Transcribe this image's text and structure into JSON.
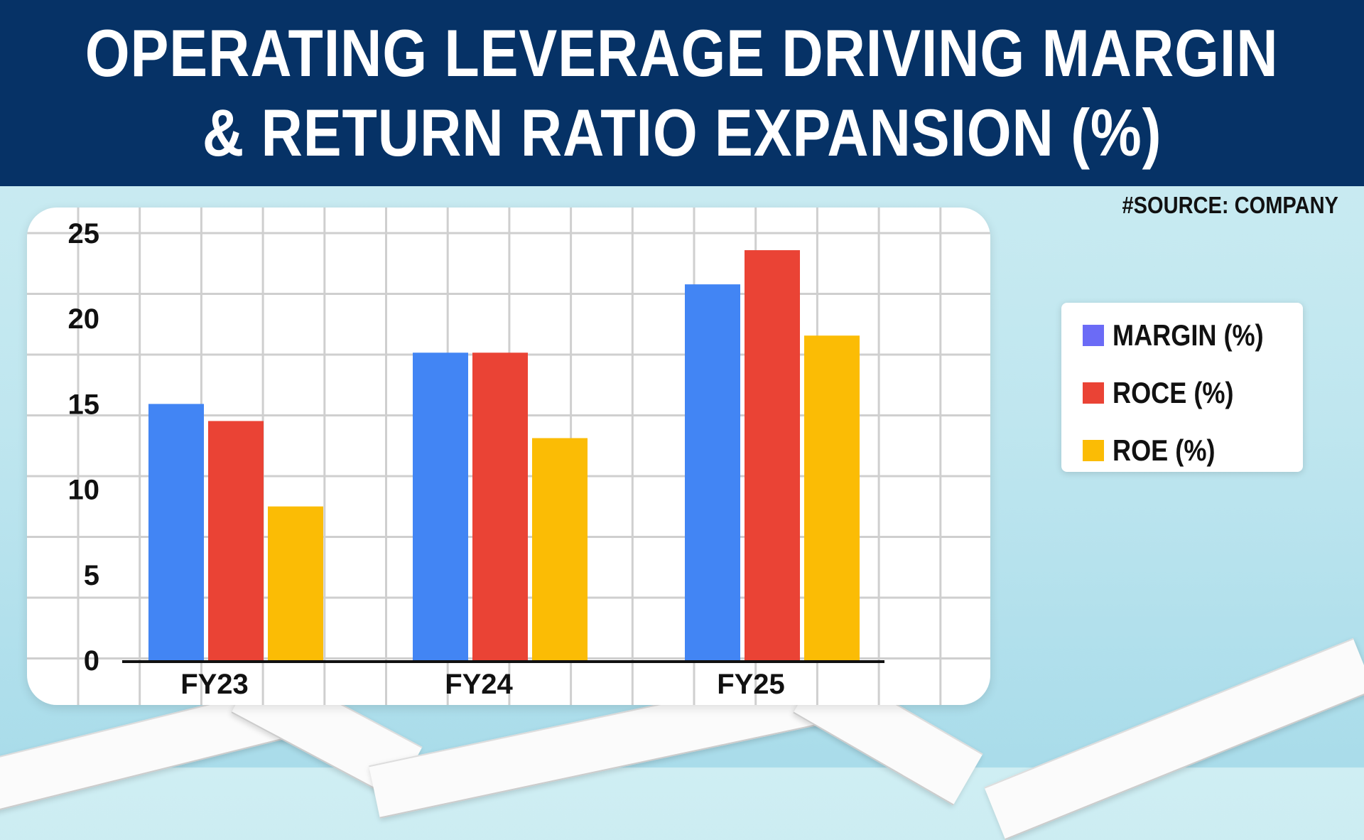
{
  "header": {
    "title_line1": "OPERATING LEVERAGE DRIVING MARGIN",
    "title_line2": "& RETURN RATIO EXPANSION (%)"
  },
  "source": "#SOURCE: COMPANY",
  "colors": {
    "header_bg": "#063266",
    "margin": "#4285f4",
    "roce": "#ea4335",
    "roe": "#fbbc05",
    "legend_margin": "#6b6bf6"
  },
  "chart_data": {
    "type": "bar",
    "categories": [
      "FY23",
      "FY24",
      "FY25"
    ],
    "series": [
      {
        "name": "MARGIN (%)",
        "values": [
          15.0,
          18.0,
          22.0
        ]
      },
      {
        "name": "ROCE (%)",
        "values": [
          14.0,
          18.0,
          24.0
        ]
      },
      {
        "name": "ROE (%)",
        "values": [
          9.0,
          13.0,
          19.0
        ]
      }
    ],
    "ylim": [
      0,
      25
    ],
    "yticks": [
      0,
      5,
      10,
      15,
      20,
      25
    ],
    "grid": true,
    "legend_position": "right"
  }
}
